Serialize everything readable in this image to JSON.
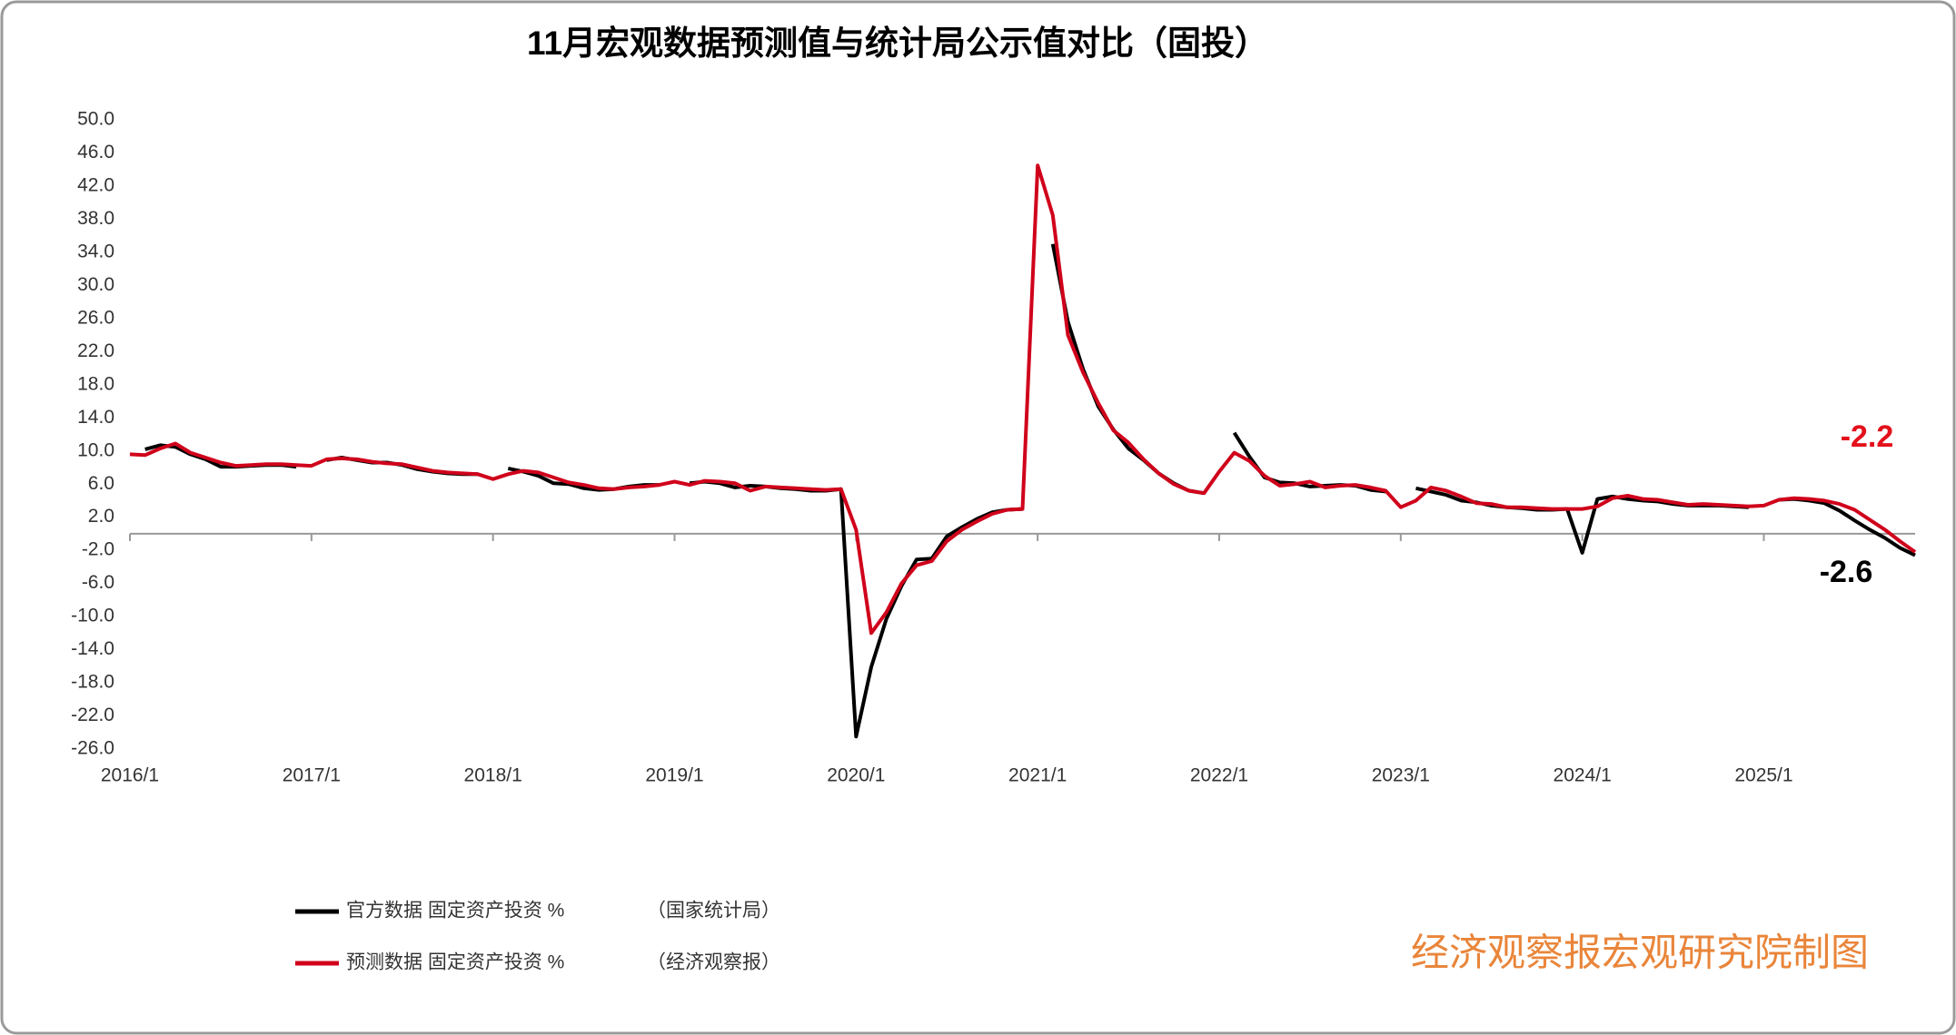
{
  "chart_data": {
    "type": "line",
    "title": "11月宏观数据预测值与统计局公示值对比（固投）",
    "categories": [
      "2016/1",
      null,
      null,
      null,
      null,
      null,
      null,
      null,
      null,
      null,
      null,
      null,
      "2017/1",
      null,
      null,
      null,
      null,
      null,
      null,
      null,
      null,
      null,
      null,
      null,
      "2018/1",
      null,
      null,
      null,
      null,
      null,
      null,
      null,
      null,
      null,
      null,
      null,
      "2019/1",
      null,
      null,
      null,
      null,
      null,
      null,
      null,
      null,
      null,
      null,
      null,
      "2020/1",
      null,
      null,
      null,
      null,
      null,
      null,
      null,
      null,
      null,
      null,
      null,
      "2021/1",
      null,
      null,
      null,
      null,
      null,
      null,
      null,
      null,
      null,
      null,
      null,
      "2022/1",
      null,
      null,
      null,
      null,
      null,
      null,
      null,
      null,
      null,
      null,
      null,
      "2023/1",
      null,
      null,
      null,
      null,
      null,
      null,
      null,
      null,
      null,
      null,
      null,
      "2024/1",
      null,
      null,
      null,
      null,
      null,
      null,
      null,
      null,
      null,
      null,
      null,
      "2025/1",
      null,
      null,
      null,
      null,
      null,
      null,
      null,
      null,
      null,
      null
    ],
    "series": [
      {
        "name": "官方数据 固定资产投资 %",
        "source": "（国家统计局）",
        "color": "#000000",
        "values": [
          null,
          10.2,
          10.7,
          10.5,
          9.6,
          9.0,
          8.1,
          8.1,
          8.2,
          8.3,
          8.3,
          8.1,
          null,
          8.9,
          9.2,
          8.9,
          8.6,
          8.6,
          8.3,
          7.8,
          7.5,
          7.3,
          7.2,
          7.2,
          null,
          7.9,
          7.5,
          7.0,
          6.1,
          6.0,
          5.5,
          5.3,
          5.4,
          5.7,
          5.9,
          5.9,
          null,
          6.1,
          6.3,
          6.1,
          5.6,
          5.8,
          5.7,
          5.5,
          5.4,
          5.2,
          5.2,
          5.4,
          -24.5,
          -16.1,
          -10.3,
          -6.3,
          -3.1,
          -3.0,
          -0.3,
          0.8,
          1.8,
          2.6,
          2.9,
          3.0,
          null,
          35.0,
          25.6,
          19.9,
          15.4,
          12.6,
          10.3,
          8.9,
          7.3,
          6.1,
          5.2,
          4.9,
          null,
          12.2,
          9.3,
          6.8,
          6.2,
          6.1,
          5.7,
          5.8,
          5.9,
          5.8,
          5.3,
          5.1,
          null,
          5.5,
          5.1,
          4.7,
          4.0,
          3.8,
          3.4,
          3.2,
          3.1,
          2.9,
          2.9,
          3.0,
          -2.3,
          4.2,
          4.5,
          4.2,
          4.0,
          3.9,
          3.6,
          3.4,
          3.4,
          3.4,
          3.3,
          3.2,
          null,
          4.1,
          4.2,
          4.0,
          3.7,
          2.8,
          1.6,
          0.5,
          -0.5,
          -1.7,
          -2.6
        ]
      },
      {
        "name": "预测数据 固定资产投资 %",
        "source": "（经济观察报）",
        "color": "#d0021b",
        "values": [
          9.6,
          9.5,
          10.3,
          10.9,
          9.8,
          9.2,
          8.6,
          8.2,
          8.3,
          8.4,
          8.4,
          8.3,
          8.2,
          9.0,
          9.1,
          9.0,
          8.7,
          8.5,
          8.4,
          8.0,
          7.6,
          7.4,
          7.3,
          7.2,
          6.6,
          7.2,
          7.6,
          7.4,
          6.8,
          6.2,
          5.9,
          5.5,
          5.4,
          5.6,
          5.7,
          5.9,
          6.3,
          5.9,
          6.4,
          6.3,
          6.1,
          5.2,
          5.7,
          5.6,
          5.5,
          5.4,
          5.3,
          5.4,
          0.5,
          -12.0,
          -9.5,
          -6.0,
          -3.8,
          -3.3,
          -0.9,
          0.5,
          1.5,
          2.4,
          2.9,
          3.0,
          44.5,
          38.5,
          24.0,
          19.5,
          15.8,
          12.5,
          11.0,
          9.0,
          7.3,
          6.0,
          5.2,
          4.9,
          7.5,
          9.8,
          8.8,
          7.0,
          5.8,
          6.0,
          6.3,
          5.6,
          5.8,
          5.9,
          5.6,
          5.2,
          3.2,
          4.0,
          5.6,
          5.2,
          4.5,
          3.7,
          3.6,
          3.2,
          3.2,
          3.1,
          3.0,
          3.0,
          3.0,
          3.3,
          4.3,
          4.6,
          4.2,
          4.1,
          3.8,
          3.5,
          3.6,
          3.5,
          3.4,
          3.3,
          3.4,
          4.1,
          4.3,
          4.2,
          4.0,
          3.6,
          2.9,
          1.7,
          0.5,
          -0.9,
          -2.2
        ]
      }
    ],
    "ylim": [
      -26,
      50
    ],
    "yticks": [
      {
        "value": 50,
        "label": "50.0"
      },
      {
        "value": 46,
        "label": "46.0"
      },
      {
        "value": 42,
        "label": "42.0"
      },
      {
        "value": 38,
        "label": "38.0"
      },
      {
        "value": 34,
        "label": "34.0"
      },
      {
        "value": 30,
        "label": "30.0"
      },
      {
        "value": 26,
        "label": "26.0"
      },
      {
        "value": 22,
        "label": "22.0"
      },
      {
        "value": 18,
        "label": "18.0"
      },
      {
        "value": 14,
        "label": "14.0"
      },
      {
        "value": 10,
        "label": "10.0"
      },
      {
        "value": 6,
        "label": "6.0"
      },
      {
        "value": 2,
        "label": "2.0"
      },
      {
        "value": -2,
        "label": "-2.0"
      },
      {
        "value": -6,
        "label": "-6.0"
      },
      {
        "value": -10,
        "label": "-10.0"
      },
      {
        "value": -14,
        "label": "-14.0"
      },
      {
        "value": -18,
        "label": "-18.0"
      },
      {
        "value": -22,
        "label": "-22.0"
      },
      {
        "value": -26,
        "label": "-26.0"
      }
    ],
    "grid": false,
    "annotations": [
      {
        "text": "-2.2",
        "color": "#e3111b"
      },
      {
        "text": "-2.6",
        "color": "#000000"
      }
    ],
    "watermark": "经济观察报宏观研究院制图"
  }
}
